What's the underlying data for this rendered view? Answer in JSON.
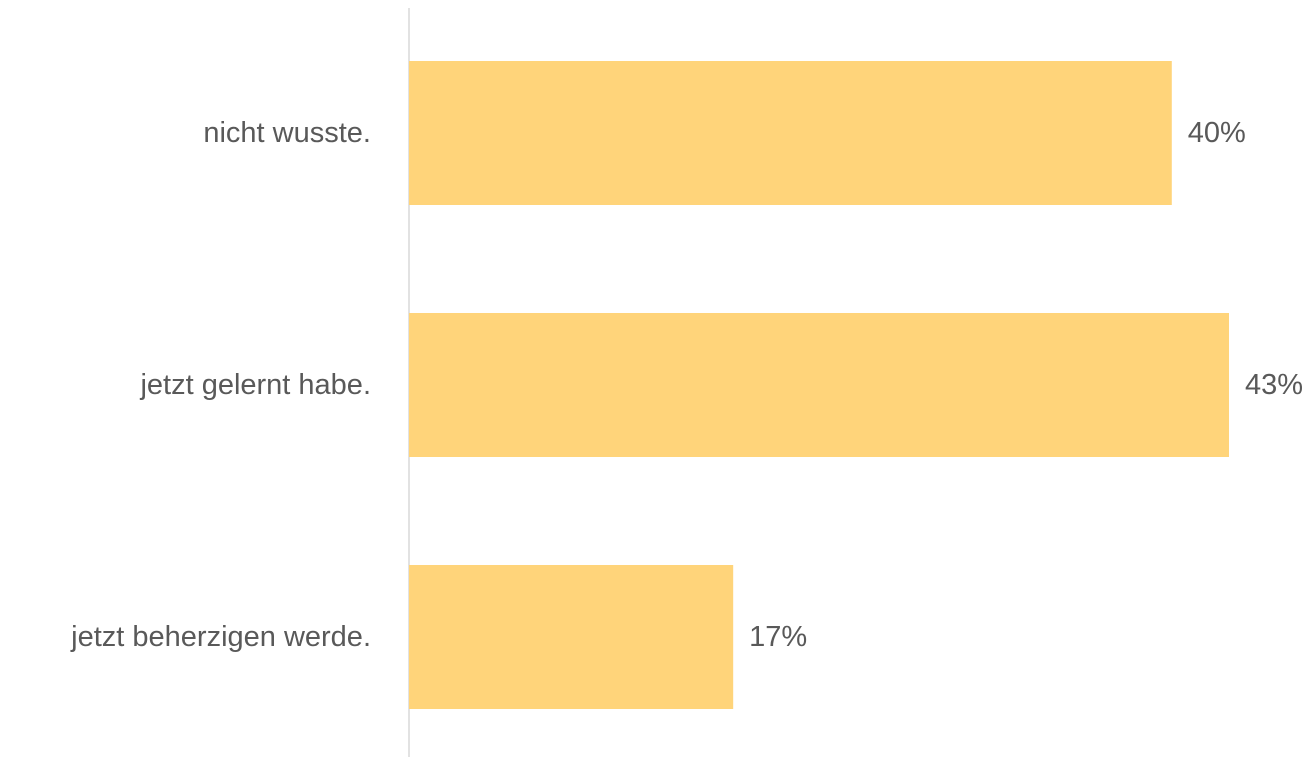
{
  "chart_data": {
    "type": "bar",
    "orientation": "horizontal",
    "categories": [
      "nicht wusste.",
      "jetzt gelernt habe.",
      "jetzt beherzigen werde."
    ],
    "values": [
      40,
      43,
      17
    ],
    "value_labels": [
      "40%",
      "43%",
      "17%"
    ],
    "unit": "%",
    "xlim": [
      0,
      43
    ],
    "bar_color": "#FFD47A",
    "axis_color": "#D9D9D9",
    "text_color": "#595959",
    "grid": false,
    "legend": "none",
    "title": "",
    "xlabel": "",
    "ylabel": ""
  }
}
